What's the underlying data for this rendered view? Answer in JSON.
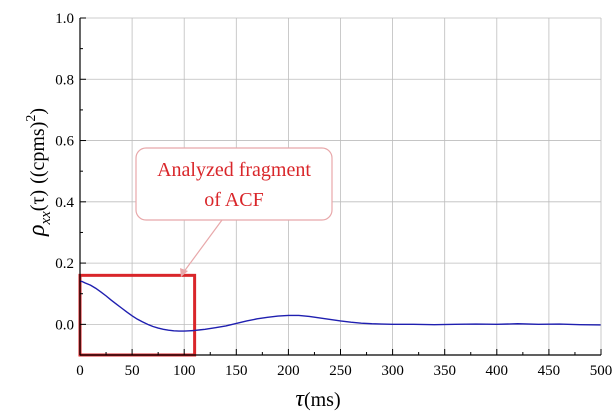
{
  "chart_data": {
    "type": "line",
    "title": "",
    "xlabel": {
      "symbol": "τ",
      "unit": "(ms)"
    },
    "ylabel": {
      "symbol": "ρ",
      "subscript": "xx",
      "arg": "(τ)",
      "unit": "((cpms)",
      "power": "2",
      "close": ")"
    },
    "xlim": [
      0,
      500
    ],
    "ylim": [
      -0.1,
      1.0
    ],
    "xticks": [
      "0",
      "50",
      "100",
      "150",
      "200",
      "250",
      "300",
      "350",
      "400",
      "450",
      "500"
    ],
    "yticks": [
      "0.0",
      "0.2",
      "0.4",
      "0.6",
      "0.8",
      "1.0"
    ],
    "grid": true,
    "series": [
      {
        "color": "#1f1fb0",
        "x": [
          0,
          2,
          5,
          10,
          15,
          20,
          25,
          30,
          35,
          40,
          45,
          50,
          55,
          60,
          65,
          70,
          75,
          80,
          85,
          90,
          95,
          100,
          105,
          110,
          115,
          120,
          130,
          140,
          150,
          160,
          170,
          180,
          190,
          200,
          210,
          220,
          230,
          240,
          250,
          260,
          270,
          280,
          290,
          300,
          320,
          340,
          360,
          380,
          400,
          420,
          440,
          460,
          480,
          500
        ],
        "y": [
          0.14,
          0.14,
          0.135,
          0.128,
          0.118,
          0.106,
          0.093,
          0.079,
          0.066,
          0.053,
          0.04,
          0.028,
          0.017,
          0.008,
          0.0,
          -0.007,
          -0.012,
          -0.016,
          -0.019,
          -0.021,
          -0.022,
          -0.022,
          -0.021,
          -0.02,
          -0.018,
          -0.016,
          -0.011,
          -0.005,
          0.003,
          0.011,
          0.018,
          0.023,
          0.027,
          0.029,
          0.029,
          0.026,
          0.021,
          0.016,
          0.011,
          0.007,
          0.004,
          0.002,
          0.001,
          0.0,
          0.0,
          -0.001,
          0.0,
          0.001,
          0.0,
          0.002,
          0.0,
          0.001,
          -0.001,
          -0.002
        ]
      }
    ],
    "annotation": {
      "lines": [
        "Analyzed fragment",
        "of ACF"
      ],
      "box_color": "#d9262a",
      "region": {
        "x0": 0,
        "x1": 110,
        "y0": -0.1,
        "y1": 0.16
      }
    }
  }
}
